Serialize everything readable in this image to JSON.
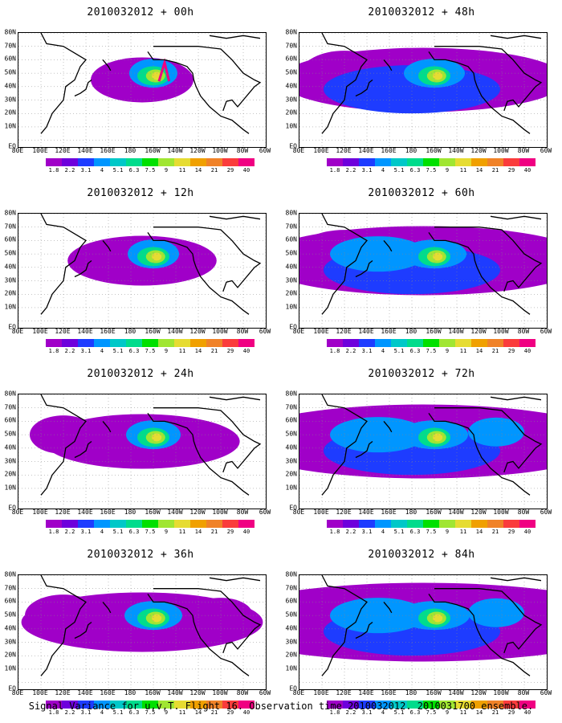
{
  "footer_caption": "Signal Variance for u,v,T. Flight 16. Observation time 2010032012. 2010031700 ensemble.",
  "lat_labels": [
    "80N",
    "70N",
    "60N",
    "50N",
    "40N",
    "30N",
    "20N",
    "10N",
    "EQ"
  ],
  "lon_labels": [
    "80E",
    "100E",
    "120E",
    "140E",
    "160E",
    "180",
    "160W",
    "140W",
    "120W",
    "100W",
    "80W",
    "60W"
  ],
  "colorbar": {
    "labels": [
      "1.8",
      "2.2",
      "3.1",
      "4",
      "5.1",
      "6.3",
      "7.5",
      "9",
      "11",
      "14",
      "21",
      "29",
      "40"
    ],
    "colors": [
      "#a000c8",
      "#6e00dc",
      "#1e3cff",
      "#0096ff",
      "#00c8c8",
      "#00dc8c",
      "#00e000",
      "#a0e632",
      "#e6dc32",
      "#f0a000",
      "#f08228",
      "#fa3c3c",
      "#f00082"
    ]
  },
  "panels": [
    {
      "title": "2010032012 + 00h",
      "col": 0,
      "row": 0,
      "level": 0
    },
    {
      "title": "2010032012 + 48h",
      "col": 1,
      "row": 0,
      "level": 4
    },
    {
      "title": "2010032012 + 12h",
      "col": 0,
      "row": 1,
      "level": 1
    },
    {
      "title": "2010032012 + 60h",
      "col": 1,
      "row": 1,
      "level": 5
    },
    {
      "title": "2010032012 + 24h",
      "col": 0,
      "row": 2,
      "level": 2
    },
    {
      "title": "2010032012 + 72h",
      "col": 1,
      "row": 2,
      "level": 6
    },
    {
      "title": "2010032012 + 36h",
      "col": 0,
      "row": 3,
      "level": 3
    },
    {
      "title": "2010032012 + 84h",
      "col": 1,
      "row": 3,
      "level": 7
    }
  ]
}
